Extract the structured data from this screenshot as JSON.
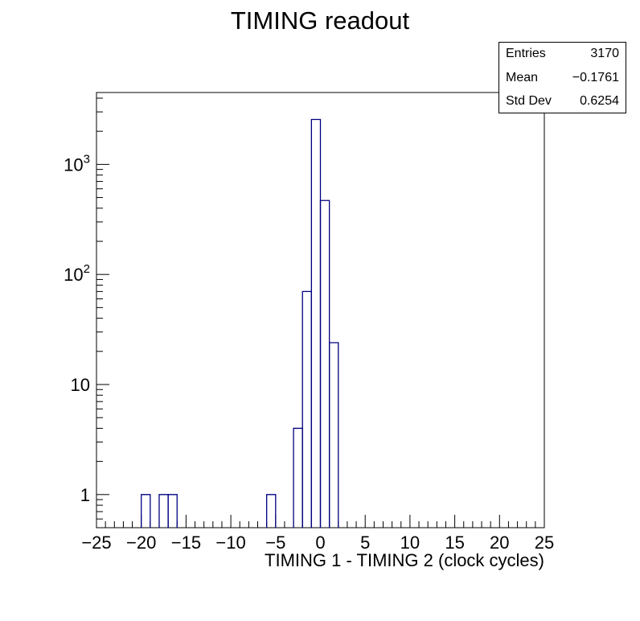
{
  "chart_data": {
    "type": "histogram",
    "title": "TIMING readout",
    "xlabel": "TIMING 1 - TIMING 2 (clock cycles)",
    "ylabel": "",
    "xlim": [
      -25,
      25
    ],
    "ylim": [
      0.5,
      4500
    ],
    "yscale": "log",
    "bin_width": 1,
    "line_color": "#000080",
    "x_ticks": [
      -25,
      -20,
      -15,
      -10,
      -5,
      0,
      5,
      10,
      15,
      20,
      25
    ],
    "x_tick_labels": [
      "−25",
      "−20",
      "−15",
      "−10",
      "−5",
      "0",
      "5",
      "10",
      "15",
      "20",
      "25"
    ],
    "y_ticks": [
      {
        "value": 1,
        "label": "1"
      },
      {
        "value": 10,
        "label": "10"
      },
      {
        "value": 100,
        "label": "10",
        "exp": "2"
      },
      {
        "value": 1000,
        "label": "10",
        "exp": "3"
      }
    ],
    "bins": [
      {
        "low": -20,
        "high": -19,
        "count": 1
      },
      {
        "low": -18,
        "high": -17,
        "count": 1
      },
      {
        "low": -17,
        "high": -16,
        "count": 1
      },
      {
        "low": -6,
        "high": -5,
        "count": 1
      },
      {
        "low": -3,
        "high": -2,
        "count": 4
      },
      {
        "low": -2,
        "high": -1,
        "count": 70
      },
      {
        "low": -1,
        "high": 0,
        "count": 2560
      },
      {
        "low": 0,
        "high": 1,
        "count": 470
      },
      {
        "low": 1,
        "high": 2,
        "count": 24
      }
    ],
    "stats": {
      "rows": [
        {
          "label": "Entries",
          "value": "3170"
        },
        {
          "label": "Mean",
          "value": "−0.1761"
        },
        {
          "label": "Std Dev",
          "value": "0.6254"
        }
      ]
    }
  }
}
